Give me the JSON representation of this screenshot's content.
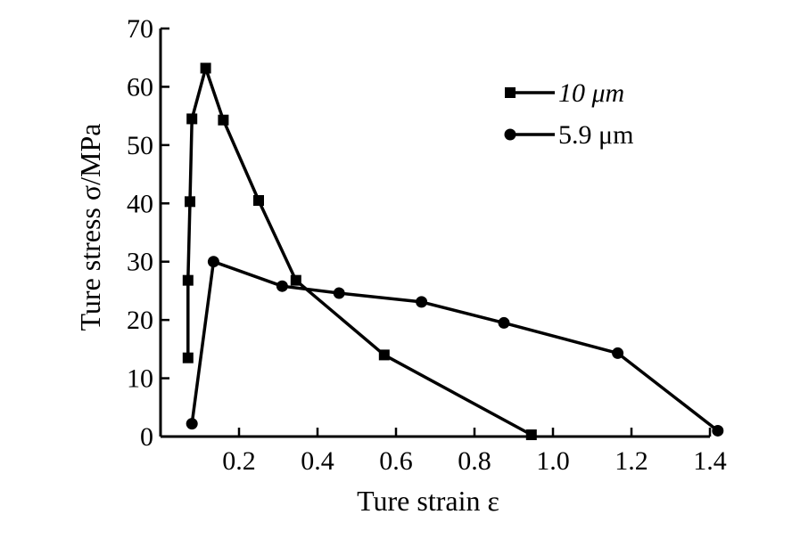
{
  "chart_data": {
    "type": "line",
    "title": "",
    "xlabel": "Ture strain ε",
    "ylabel": "Ture stress σ/MPa",
    "xlim": [
      0,
      1.4
    ],
    "ylim": [
      0,
      70
    ],
    "x_ticks": [
      0.2,
      0.4,
      0.6,
      0.8,
      1.0,
      1.2,
      1.4
    ],
    "x_tick_labels": [
      "0.2",
      "0.4",
      "0.6",
      "0.8",
      "1.0",
      "1.2",
      "1.4"
    ],
    "y_ticks": [
      0,
      10,
      20,
      30,
      40,
      50,
      60,
      70
    ],
    "y_tick_labels": [
      "0",
      "10",
      "20",
      "30",
      "40",
      "50",
      "60",
      "70"
    ],
    "grid": false,
    "legend_position": "top-right",
    "series": [
      {
        "name": "10 μm",
        "marker": "square",
        "color": "#000000",
        "points": [
          [
            0.07,
            13.5
          ],
          [
            0.07,
            26.8
          ],
          [
            0.075,
            40.3
          ],
          [
            0.08,
            54.5
          ],
          [
            0.115,
            63.2
          ],
          [
            0.16,
            54.3
          ],
          [
            0.25,
            40.5
          ],
          [
            0.345,
            26.8
          ],
          [
            0.57,
            14.0
          ],
          [
            0.945,
            0.3
          ]
        ]
      },
      {
        "name": "5.9 μm",
        "marker": "circle",
        "color": "#000000",
        "points": [
          [
            0.08,
            2.2
          ],
          [
            0.135,
            30.0
          ],
          [
            0.31,
            25.8
          ],
          [
            0.455,
            24.6
          ],
          [
            0.665,
            23.1
          ],
          [
            0.875,
            19.5
          ],
          [
            1.165,
            14.3
          ],
          [
            1.42,
            1.0
          ]
        ]
      }
    ]
  }
}
